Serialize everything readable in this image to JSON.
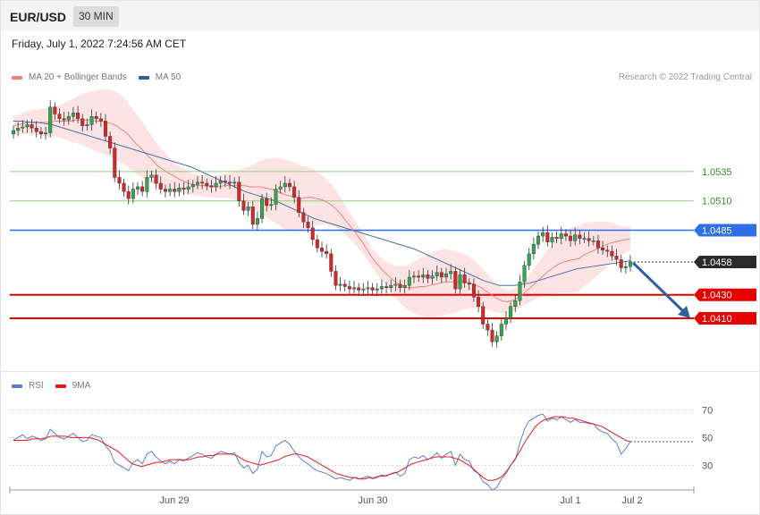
{
  "header": {
    "symbol": "EUR/USD",
    "timeframe": "30 MIN",
    "datetime": "Friday, July 1, 2022 7:24:56 AM CET",
    "copyright": "Research © 2022 Trading Central"
  },
  "legend_main": [
    {
      "label": "MA 20 + Bollinger Bands",
      "color": "#f08080"
    },
    {
      "label": "MA 50",
      "color": "#2e5f9e"
    }
  ],
  "legend_rsi": [
    {
      "label": "RSI",
      "color": "#5b7fd6"
    },
    {
      "label": "9MA",
      "color": "#e41c1c"
    }
  ],
  "chart_data": [
    {
      "type": "candlestick",
      "x_labels": [
        "Jun 29",
        "Jun 30",
        "Jul 1",
        "Jul 2"
      ],
      "ylim": [
        1.0365,
        1.0605
      ],
      "current_price": "1.0458",
      "levels": [
        {
          "label": "1.0535",
          "value": 1.0535,
          "kind": "resistance",
          "color": "#8ed07a"
        },
        {
          "label": "1.0510",
          "value": 1.051,
          "kind": "resistance",
          "color": "#8ed07a"
        },
        {
          "label": "1.0485",
          "value": 1.0485,
          "kind": "pivot",
          "color": "#2f6fe8"
        },
        {
          "label": "1.0430",
          "value": 1.043,
          "kind": "support",
          "color": "#e60000"
        },
        {
          "label": "1.0410",
          "value": 1.041,
          "kind": "support",
          "color": "#e60000"
        }
      ],
      "close": [
        1.057,
        1.0572,
        1.0573,
        1.0575,
        1.0572,
        1.0569,
        1.0567,
        1.0568,
        1.059,
        1.0584,
        1.058,
        1.0579,
        1.0582,
        1.0585,
        1.058,
        1.0574,
        1.0575,
        1.0582,
        1.058,
        1.0578,
        1.0565,
        1.0555,
        1.053,
        1.0525,
        1.0518,
        1.0512,
        1.052,
        1.0522,
        1.0518,
        1.053,
        1.0532,
        1.0525,
        1.052,
        1.0518,
        1.052,
        1.0518,
        1.0521,
        1.052,
        1.0522,
        1.0524,
        1.0526,
        1.0525,
        1.0523,
        1.0522,
        1.0525,
        1.0527,
        1.0526,
        1.0525,
        1.0526,
        1.051,
        1.0502,
        1.0505,
        1.049,
        1.0495,
        1.0512,
        1.0506,
        1.0507,
        1.052,
        1.0522,
        1.0525,
        1.0522,
        1.0513,
        1.05,
        1.0492,
        1.0487,
        1.0477,
        1.047,
        1.0467,
        1.0465,
        1.045,
        1.0438,
        1.0439,
        1.0437,
        1.0435,
        1.0436,
        1.0434,
        1.0435,
        1.0436,
        1.0434,
        1.0435,
        1.0437,
        1.0436,
        1.0438,
        1.0439,
        1.0436,
        1.0438,
        1.0445,
        1.0446,
        1.0445,
        1.0447,
        1.0444,
        1.0446,
        1.0449,
        1.0445,
        1.0448,
        1.045,
        1.0435,
        1.0447,
        1.044,
        1.0439,
        1.0428,
        1.042,
        1.0405,
        1.04,
        1.039,
        1.0395,
        1.0405,
        1.041,
        1.042,
        1.0425,
        1.0441,
        1.0455,
        1.0465,
        1.0473,
        1.048,
        1.0483,
        1.0475,
        1.0479,
        1.0478,
        1.0482,
        1.048,
        1.0476,
        1.0481,
        1.0478,
        1.0478,
        1.0476,
        1.0476,
        1.047,
        1.0468,
        1.0467,
        1.0463,
        1.046,
        1.0453,
        1.0454,
        1.0458
      ],
      "ma20": [
        1.0574,
        1.0575,
        1.0576,
        1.0577,
        1.0577,
        1.0577,
        1.0577,
        1.0577,
        1.0578,
        1.0578,
        1.0578,
        1.0578,
        1.0579,
        1.0579,
        1.0579,
        1.0579,
        1.0578,
        1.0578,
        1.0577,
        1.0576,
        1.0574,
        1.0571,
        1.0568,
        1.0563,
        1.0558,
        1.0554,
        1.0549,
        1.0545,
        1.054,
        1.0537,
        1.0534,
        1.0532,
        1.0529,
        1.0527,
        1.0525,
        1.0524,
        1.0523,
        1.0523,
        1.0522,
        1.0522,
        1.0522,
        1.0523,
        1.0523,
        1.0523,
        1.0523,
        1.0523,
        1.0522,
        1.0522,
        1.0522,
        1.0521,
        1.052,
        1.0519,
        1.0517,
        1.0515,
        1.0514,
        1.0513,
        1.0512,
        1.0513,
        1.0513,
        1.0512,
        1.0511,
        1.0509,
        1.0506,
        1.0502,
        1.0497,
        1.0491,
        1.0486,
        1.048,
        1.0474,
        1.0467,
        1.046,
        1.0455,
        1.045,
        1.0446,
        1.0442,
        1.0439,
        1.0437,
        1.0436,
        1.0436,
        1.0437,
        1.0437,
        1.0438,
        1.0439,
        1.044,
        1.0441,
        1.0441,
        1.0441,
        1.0441,
        1.0441,
        1.044,
        1.0438,
        1.0436,
        1.0433,
        1.043,
        1.0427,
        1.0425,
        1.0424,
        1.0425,
        1.0427,
        1.043,
        1.0434,
        1.0438,
        1.0442,
        1.0446,
        1.045,
        1.0453,
        1.0456,
        1.0458,
        1.0459,
        1.046,
        1.0461,
        1.0464,
        1.0466,
        1.0468,
        1.047,
        1.0472,
        1.0474,
        1.0475,
        1.0476,
        1.0477,
        1.0478
      ],
      "ma50": [
        1.0578,
        1.0578,
        1.0577,
        1.0577,
        1.0576,
        1.0575,
        1.0573,
        1.0571,
        1.0569,
        1.0567,
        1.0565,
        1.0563,
        1.0561,
        1.0559,
        1.0557,
        1.0555,
        1.0553,
        1.0551,
        1.0549,
        1.0547,
        1.0545,
        1.0543,
        1.0541,
        1.0539,
        1.0536,
        1.0533,
        1.053,
        1.0527,
        1.0524,
        1.0521,
        1.0518,
        1.0516,
        1.0514,
        1.0512,
        1.051,
        1.0507,
        1.0504,
        1.0501,
        1.0498,
        1.0495,
        1.0493,
        1.0491,
        1.0489,
        1.0487,
        1.0485,
        1.0483,
        1.0481,
        1.0479,
        1.0477,
        1.0475,
        1.0473,
        1.0471,
        1.0469,
        1.0466,
        1.0463,
        1.046,
        1.0457,
        1.0454,
        1.0451,
        1.0448,
        1.0445,
        1.0442,
        1.044,
        1.0438,
        1.0438,
        1.0438,
        1.0439,
        1.044,
        1.0442,
        1.0444,
        1.0446,
        1.0448,
        1.045,
        1.0452,
        1.0453,
        1.0454,
        1.0455,
        1.0456,
        1.0457,
        1.0458,
        1.0459
      ],
      "bb_width": [
        0.0008,
        0.0009,
        0.001,
        0.0011,
        0.0012,
        0.0013,
        0.0015,
        0.0018,
        0.0021,
        0.0024,
        0.0026,
        0.0028,
        0.0029,
        0.0029,
        0.0027,
        0.0025,
        0.0022,
        0.0019,
        0.0016,
        0.0013,
        0.0011,
        0.001,
        0.0009,
        0.0009,
        0.0009,
        0.001,
        0.0011,
        0.0013,
        0.0016,
        0.002,
        0.0024,
        0.0027,
        0.0029,
        0.003,
        0.0029,
        0.0027,
        0.0024,
        0.0021,
        0.0018,
        0.0015,
        0.0012,
        0.001,
        0.0009,
        0.0008,
        0.0009,
        0.0011,
        0.0014,
        0.0018,
        0.0022,
        0.0025,
        0.0027,
        0.0028,
        0.0028,
        0.0026,
        0.0024,
        0.0021,
        0.0018,
        0.0015,
        0.0012,
        0.001,
        0.0009,
        0.001,
        0.0012,
        0.0015,
        0.0019,
        0.0023,
        0.0026,
        0.0028,
        0.0028,
        0.0026,
        0.0023,
        0.002,
        0.0016,
        0.0012,
        0.001
      ]
    },
    {
      "type": "line",
      "name": "RSI",
      "ylim": [
        14,
        80
      ],
      "y_ticks": [
        70,
        50,
        30
      ],
      "rsi": [
        48,
        50,
        52,
        49,
        51,
        50,
        48,
        49,
        56,
        53,
        50,
        49,
        51,
        53,
        50,
        47,
        48,
        52,
        51,
        50,
        44,
        40,
        32,
        30,
        28,
        26,
        32,
        34,
        31,
        38,
        40,
        36,
        33,
        31,
        33,
        31,
        34,
        33,
        35,
        37,
        39,
        38,
        36,
        35,
        38,
        40,
        39,
        38,
        39,
        32,
        28,
        30,
        24,
        27,
        40,
        36,
        37,
        44,
        46,
        48,
        45,
        40,
        36,
        33,
        31,
        28,
        26,
        25,
        24,
        22,
        20,
        21,
        20,
        19,
        21,
        20,
        21,
        22,
        20,
        21,
        23,
        22,
        24,
        25,
        22,
        24,
        34,
        36,
        35,
        37,
        34,
        36,
        39,
        35,
        38,
        40,
        30,
        38,
        34,
        33,
        26,
        24,
        18,
        16,
        12,
        14,
        20,
        24,
        30,
        34,
        46,
        56,
        62,
        64,
        66,
        67,
        62,
        64,
        63,
        65,
        63,
        61,
        63,
        61,
        61,
        60,
        60,
        56,
        54,
        53,
        49,
        46,
        38,
        42,
        47
      ],
      "ma9": [
        48,
        48,
        48,
        48,
        49,
        49,
        49,
        50,
        51,
        51,
        51,
        51,
        50,
        50,
        50,
        50,
        50,
        49,
        48,
        46,
        44,
        42,
        40,
        37,
        34,
        31,
        30,
        29,
        30,
        31,
        32,
        32,
        33,
        34,
        34,
        34,
        34,
        34,
        35,
        36,
        36,
        37,
        37,
        38,
        38,
        38,
        38,
        37,
        35,
        33,
        32,
        31,
        30,
        31,
        32,
        33,
        34,
        36,
        37,
        38,
        38,
        37,
        36,
        34,
        32,
        30,
        28,
        26,
        24,
        23,
        22,
        21,
        21,
        20,
        20,
        21,
        21,
        22,
        22,
        23,
        24,
        25,
        27,
        29,
        31,
        32,
        33,
        34,
        35,
        36,
        36,
        36,
        36,
        35,
        34,
        32,
        30,
        27,
        24,
        21,
        19,
        19,
        20,
        22,
        26,
        31,
        36,
        42,
        48,
        53,
        58,
        61,
        63,
        64,
        65,
        65,
        65,
        64,
        64,
        63,
        62,
        61,
        60,
        59,
        58,
        56,
        54,
        52,
        50,
        48,
        47
      ]
    }
  ]
}
